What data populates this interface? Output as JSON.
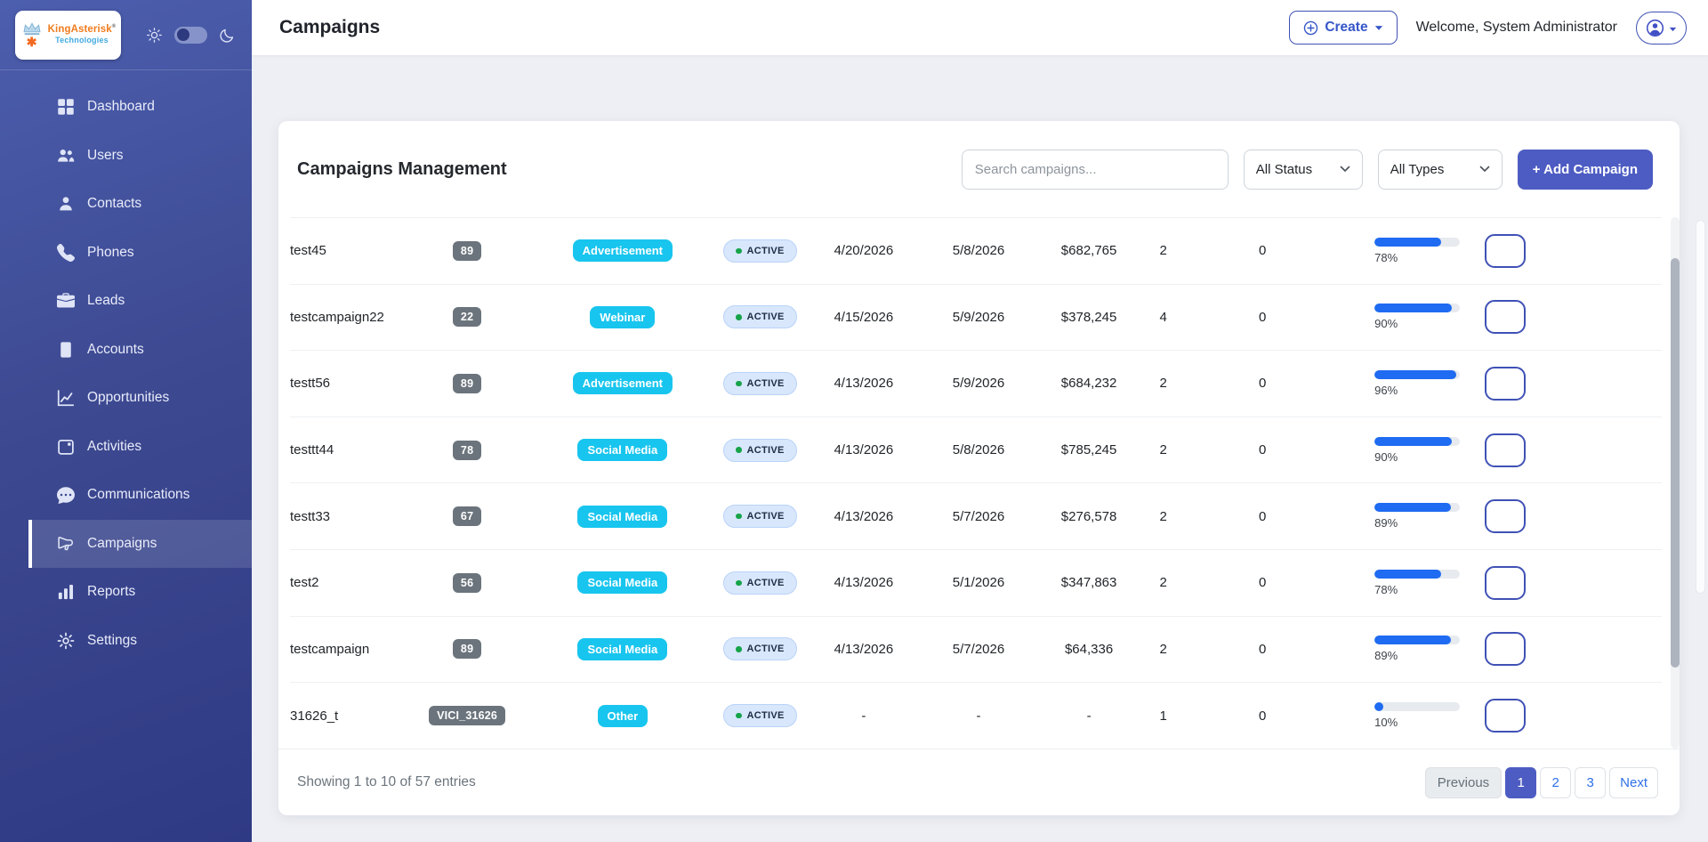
{
  "brand": {
    "name": "KingAsterisk",
    "mark": "®",
    "subtitle": "Technologies",
    "asterisk": "✱"
  },
  "sidebar": {
    "items": [
      {
        "label": "Dashboard",
        "icon": "grid-icon",
        "active": false
      },
      {
        "label": "Users",
        "icon": "users-icon",
        "active": false
      },
      {
        "label": "Contacts",
        "icon": "contact-icon",
        "active": false
      },
      {
        "label": "Phones",
        "icon": "phone-icon",
        "active": false
      },
      {
        "label": "Leads",
        "icon": "briefcase-icon",
        "active": false
      },
      {
        "label": "Accounts",
        "icon": "book-icon",
        "active": false
      },
      {
        "label": "Opportunities",
        "icon": "line-chart-icon",
        "active": false
      },
      {
        "label": "Activities",
        "icon": "calendar-icon",
        "active": false
      },
      {
        "label": "Communications",
        "icon": "chat-icon",
        "active": false
      },
      {
        "label": "Campaigns",
        "icon": "megaphone-icon",
        "active": true
      },
      {
        "label": "Reports",
        "icon": "bar-chart-icon",
        "active": false
      },
      {
        "label": "Settings",
        "icon": "gear-icon",
        "active": false
      }
    ]
  },
  "topbar": {
    "title": "Campaigns",
    "create_label": "Create",
    "welcome": "Welcome, System Administrator"
  },
  "card": {
    "title": "Campaigns Management",
    "search_placeholder": "Search campaigns...",
    "status_filter": "All Status",
    "type_filter": "All Types",
    "add_campaign_label": "+ Add Campaign"
  },
  "table": {
    "rows": [
      {
        "name": "test45",
        "code": "89",
        "type": "Advertisement",
        "status": "ACTIVE",
        "start_date": "4/20/2026",
        "end_date": "5/8/2026",
        "budget": "$682,765",
        "count_a": "2",
        "count_b": "0",
        "progress": 78,
        "progress_label": "78%"
      },
      {
        "name": "testcampaign22",
        "code": "22",
        "type": "Webinar",
        "status": "ACTIVE",
        "start_date": "4/15/2026",
        "end_date": "5/9/2026",
        "budget": "$378,245",
        "count_a": "4",
        "count_b": "0",
        "progress": 90,
        "progress_label": "90%"
      },
      {
        "name": "testt56",
        "code": "89",
        "type": "Advertisement",
        "status": "ACTIVE",
        "start_date": "4/13/2026",
        "end_date": "5/9/2026",
        "budget": "$684,232",
        "count_a": "2",
        "count_b": "0",
        "progress": 96,
        "progress_label": "96%"
      },
      {
        "name": "testtt44",
        "code": "78",
        "type": "Social Media",
        "status": "ACTIVE",
        "start_date": "4/13/2026",
        "end_date": "5/8/2026",
        "budget": "$785,245",
        "count_a": "2",
        "count_b": "0",
        "progress": 90,
        "progress_label": "90%"
      },
      {
        "name": "testt33",
        "code": "67",
        "type": "Social Media",
        "status": "ACTIVE",
        "start_date": "4/13/2026",
        "end_date": "5/7/2026",
        "budget": "$276,578",
        "count_a": "2",
        "count_b": "0",
        "progress": 89,
        "progress_label": "89%"
      },
      {
        "name": "test2",
        "code": "56",
        "type": "Social Media",
        "status": "ACTIVE",
        "start_date": "4/13/2026",
        "end_date": "5/1/2026",
        "budget": "$347,863",
        "count_a": "2",
        "count_b": "0",
        "progress": 78,
        "progress_label": "78%"
      },
      {
        "name": "testcampaign",
        "code": "89",
        "type": "Social Media",
        "status": "ACTIVE",
        "start_date": "4/13/2026",
        "end_date": "5/7/2026",
        "budget": "$64,336",
        "count_a": "2",
        "count_b": "0",
        "progress": 89,
        "progress_label": "89%"
      },
      {
        "name": "31626_t",
        "code": "VICI_31626",
        "type": "Other",
        "status": "ACTIVE",
        "start_date": "-",
        "end_date": "-",
        "budget": "-",
        "count_a": "1",
        "count_b": "0",
        "progress": 10,
        "progress_label": "10%"
      }
    ]
  },
  "footer": {
    "showing": "Showing 1 to 10 of 57 entries",
    "pagination": {
      "prev": "Previous",
      "p1": "1",
      "p2": "2",
      "p3": "3",
      "next": "Next"
    }
  },
  "colors": {
    "accent_indigo": "#4d5cc2",
    "type_badge_cyan": "#18c5ee",
    "status_dot_green": "#17a34a",
    "progress_blue": "#1f6bf2",
    "delete_red": "#dd4352",
    "edit_yellow": "#f3b20d"
  }
}
